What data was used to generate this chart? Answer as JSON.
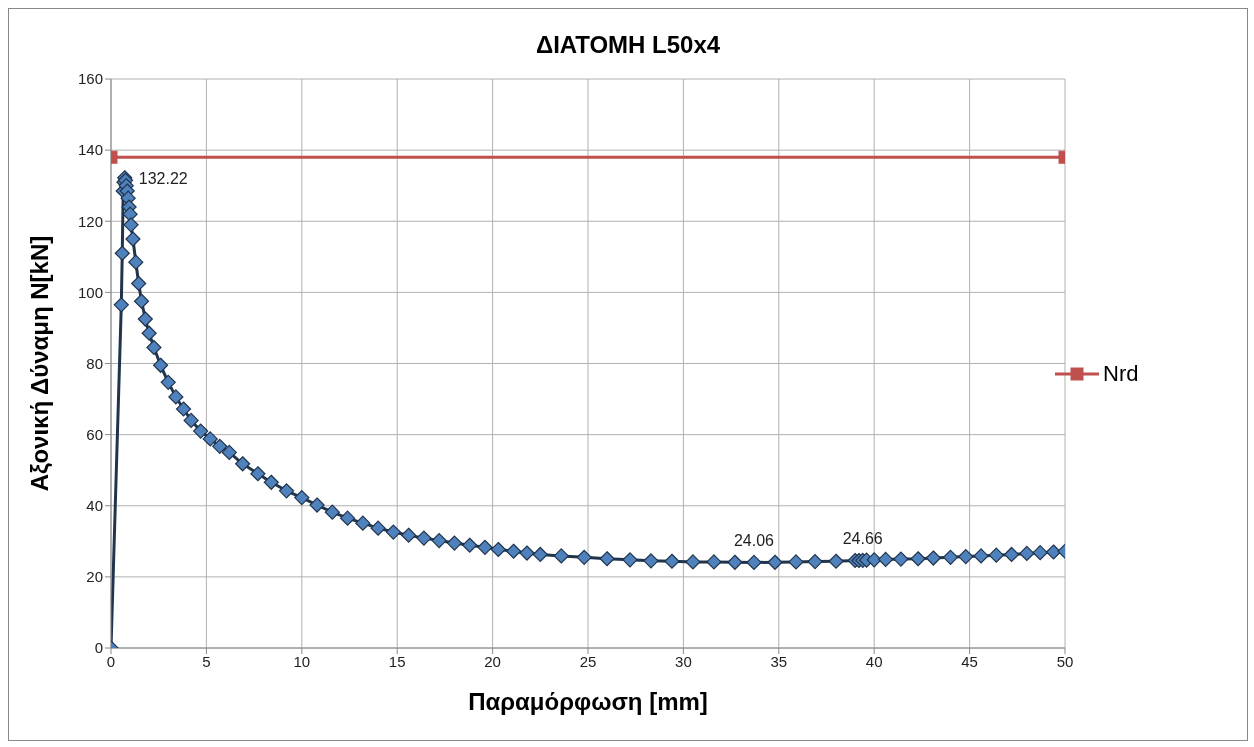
{
  "chart_data": {
    "type": "line",
    "title": "ΔΙΑΤΟΜΗ L50x4",
    "xlabel": "Παραμόρφωση [mm]",
    "ylabel": "Αξονική Δύναμη N[kN]",
    "xlim": [
      0,
      50
    ],
    "xticks": [
      0,
      5,
      10,
      15,
      20,
      25,
      30,
      35,
      40,
      45,
      50
    ],
    "ylim": [
      0,
      160
    ],
    "yticks": [
      0,
      20,
      40,
      60,
      80,
      100,
      120,
      140,
      160
    ],
    "grid": true,
    "legend": "right",
    "marker": "diamond",
    "series": [
      {
        "color": "#4f81bd",
        "x": [
          0,
          0.54,
          0.59,
          0.64,
          0.68,
          0.72,
          0.76,
          0.8,
          0.85,
          0.9,
          0.95,
          1.0,
          1.05,
          1.15,
          1.3,
          1.45,
          1.6,
          1.8,
          2.0,
          2.25,
          2.6,
          3.0,
          3.4,
          3.8,
          4.2,
          4.7,
          5.2,
          5.7,
          6.2,
          6.9,
          7.7,
          8.4,
          9.2,
          10.0,
          10.8,
          11.6,
          12.4,
          13.2,
          14.0,
          14.8,
          15.6,
          16.4,
          17.2,
          18.0,
          18.8,
          19.6,
          20.3,
          21.1,
          21.8,
          22.5,
          23.6,
          24.8,
          26.0,
          27.2,
          28.3,
          29.4,
          30.5,
          31.6,
          32.7,
          33.7,
          34.8,
          35.9,
          36.9,
          38.0,
          39.0,
          39.2,
          39.4,
          39.6,
          40.0,
          40.6,
          41.4,
          42.3,
          43.1,
          44.0,
          44.8,
          45.6,
          46.4,
          47.2,
          48.0,
          48.7,
          49.4,
          50
        ],
        "values": [
          0,
          96.5,
          111,
          128.5,
          131,
          132.22,
          131.5,
          130,
          128.5,
          126.5,
          124,
          122,
          119,
          115,
          108.5,
          102.5,
          97.5,
          92.5,
          88.5,
          84.5,
          79.5,
          74.7,
          70.6,
          67.2,
          64,
          61,
          58.8,
          56.7,
          55,
          51.8,
          49,
          46.6,
          44.2,
          42.3,
          40.2,
          38.2,
          36.5,
          35.1,
          33.7,
          32.6,
          31.7,
          30.9,
          30.2,
          29.5,
          28.9,
          28.3,
          27.7,
          27.2,
          26.7,
          26.3,
          25.9,
          25.5,
          25.1,
          24.8,
          24.5,
          24.4,
          24.2,
          24.2,
          24.1,
          24.06,
          24.1,
          24.2,
          24.3,
          24.4,
          24.6,
          24.6,
          24.66,
          24.7,
          24.8,
          24.9,
          25,
          25.1,
          25.3,
          25.5,
          25.7,
          25.9,
          26.1,
          26.3,
          26.6,
          26.8,
          27,
          27.2
        ],
        "value_labels": [
          null,
          null,
          null,
          null,
          null,
          "132.22",
          null,
          null,
          null,
          null,
          null,
          null,
          null,
          null,
          null,
          null,
          null,
          null,
          null,
          null,
          null,
          null,
          null,
          null,
          null,
          null,
          null,
          null,
          null,
          null,
          null,
          null,
          null,
          null,
          null,
          null,
          null,
          null,
          null,
          null,
          null,
          null,
          null,
          null,
          null,
          null,
          null,
          null,
          null,
          null,
          null,
          null,
          null,
          null,
          null,
          null,
          null,
          null,
          null,
          "24.06",
          null,
          null,
          null,
          null,
          null,
          null,
          "24.66",
          null,
          null,
          null,
          null,
          null,
          null,
          null,
          null,
          null,
          null,
          null,
          null,
          null,
          null,
          null
        ]
      },
      {
        "name": "Nrd",
        "color": "#c0504d",
        "marker": "square",
        "x": [
          0,
          50
        ],
        "values": [
          138,
          138
        ]
      }
    ]
  }
}
